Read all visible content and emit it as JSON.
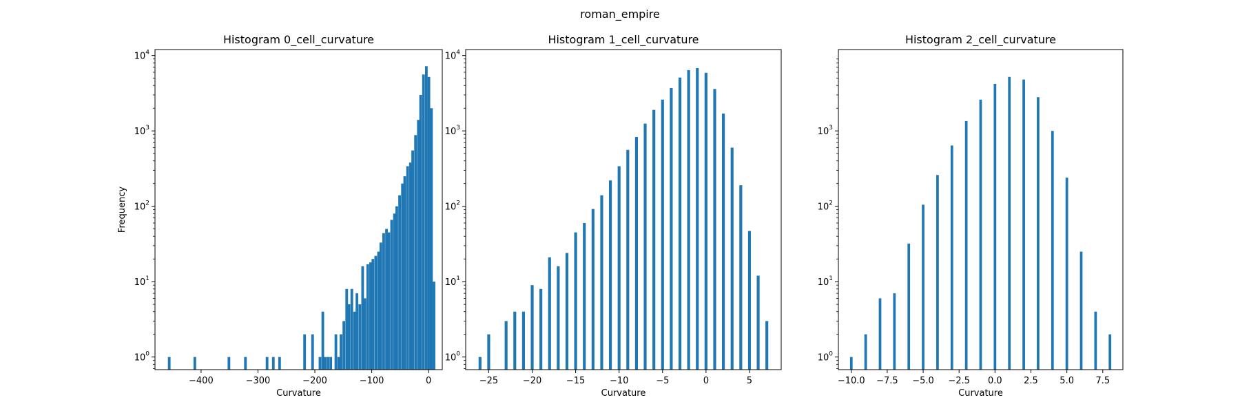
{
  "figure": {
    "suptitle": "roman_empire"
  },
  "colors": {
    "bar": "#1f77b4",
    "axes": "#000000",
    "background": "#ffffff"
  },
  "chart_data": [
    {
      "type": "bar",
      "title": "Histogram 0_cell_curvature",
      "xlabel": "Curvature",
      "ylabel": "Frequency",
      "yscale": "log",
      "xlim": [
        -481,
        24
      ],
      "ylim": [
        0.68,
        12000
      ],
      "xticks": [
        {
          "v": -400,
          "label": "−400"
        },
        {
          "v": -300,
          "label": "−300"
        },
        {
          "v": -200,
          "label": "−200"
        },
        {
          "v": -100,
          "label": "−100"
        },
        {
          "v": 0,
          "label": "0"
        }
      ],
      "yticks": [
        {
          "v": 1,
          "base": "10",
          "exp": "0"
        },
        {
          "v": 10,
          "base": "10",
          "exp": "1"
        },
        {
          "v": 100,
          "base": "10",
          "exp": "2"
        },
        {
          "v": 1000,
          "base": "10",
          "exp": "3"
        },
        {
          "v": 10000,
          "base": "10",
          "exp": "4"
        }
      ],
      "bin_width": 4.66,
      "x": [
        -456,
        -411,
        -351,
        -322,
        -284,
        -273,
        -262,
        -218,
        -204,
        -191,
        -186,
        -182,
        -177,
        -172,
        -163,
        -158,
        -154,
        -149,
        -144,
        -140,
        -135,
        -130,
        -126,
        -121,
        -116,
        -112,
        -107,
        -102,
        -98,
        -93,
        -88,
        -84,
        -79,
        -74,
        -70,
        -65,
        -60,
        -56,
        -51,
        -46,
        -42,
        -37,
        -32,
        -28,
        -23,
        -18,
        -14,
        -9,
        -4,
        0.5,
        5,
        9.5
      ],
      "values": [
        1,
        1,
        1,
        1,
        1,
        1,
        1,
        2,
        2,
        1,
        4,
        1,
        1,
        1,
        2,
        1,
        2,
        3,
        8,
        5,
        8,
        4,
        7,
        5,
        16,
        6,
        17,
        18,
        20,
        22,
        25,
        33,
        44,
        50,
        45,
        66,
        80,
        100,
        140,
        200,
        250,
        340,
        380,
        550,
        880,
        1400,
        3000,
        5600,
        7200,
        5200,
        2000,
        10
      ]
    },
    {
      "type": "bar",
      "title": "Histogram 1_cell_curvature",
      "xlabel": "Curvature",
      "yscale": "log",
      "xlim": [
        -27.65,
        8.65
      ],
      "ylim": [
        0.68,
        12000
      ],
      "xticks": [
        {
          "v": -25,
          "label": "−25"
        },
        {
          "v": -20,
          "label": "−20"
        },
        {
          "v": -15,
          "label": "−15"
        },
        {
          "v": -10,
          "label": "−10"
        },
        {
          "v": -5,
          "label": "−5"
        },
        {
          "v": 0,
          "label": "0"
        },
        {
          "v": 5,
          "label": "5"
        }
      ],
      "yticks": [
        {
          "v": 1,
          "base": "10",
          "exp": "0"
        },
        {
          "v": 10,
          "base": "10",
          "exp": "1"
        },
        {
          "v": 100,
          "base": "10",
          "exp": "2"
        },
        {
          "v": 1000,
          "base": "10",
          "exp": "3"
        },
        {
          "v": 10000,
          "base": "10",
          "exp": "4"
        }
      ],
      "bin_width": 0.33,
      "x": [
        -26,
        -25,
        -23,
        -22,
        -21,
        -20,
        -19,
        -18,
        -17,
        -16,
        -15,
        -14,
        -13,
        -12,
        -11,
        -10,
        -9,
        -8,
        -7,
        -6,
        -5,
        -4,
        -3,
        -2,
        -1,
        0,
        1,
        2,
        3,
        4,
        5,
        6,
        7
      ],
      "values": [
        1,
        2,
        3,
        4,
        4,
        9,
        8,
        21,
        16,
        24,
        45,
        60,
        92,
        140,
        220,
        340,
        560,
        830,
        1250,
        1900,
        2600,
        3700,
        5100,
        6400,
        6800,
        5900,
        3600,
        1700,
        600,
        190,
        47,
        12,
        3
      ]
    },
    {
      "type": "bar",
      "title": "Histogram 2_cell_curvature",
      "xlabel": "Curvature",
      "yscale": "log",
      "xlim": [
        -10.9,
        8.9
      ],
      "ylim": [
        0.68,
        12000
      ],
      "xticks": [
        {
          "v": -10,
          "label": "−10.0"
        },
        {
          "v": -7.5,
          "label": "−7.5"
        },
        {
          "v": -5,
          "label": "−5.0"
        },
        {
          "v": -2.5,
          "label": "−2.5"
        },
        {
          "v": 0,
          "label": "0.0"
        },
        {
          "v": 2.5,
          "label": "2.5"
        },
        {
          "v": 5,
          "label": "5.0"
        },
        {
          "v": 7.5,
          "label": "7.5"
        }
      ],
      "yticks": [
        {
          "v": 1,
          "base": "10",
          "exp": "0"
        },
        {
          "v": 10,
          "base": "10",
          "exp": "1"
        },
        {
          "v": 100,
          "base": "10",
          "exp": "2"
        },
        {
          "v": 1000,
          "base": "10",
          "exp": "3"
        }
      ],
      "bin_width": 0.18,
      "x": [
        -10,
        -9,
        -8,
        -7,
        -6,
        -5,
        -4,
        -3,
        -2,
        -1,
        0,
        1,
        2,
        3,
        4,
        5,
        6,
        7,
        8
      ],
      "values": [
        1,
        2,
        6,
        7,
        32,
        105,
        260,
        640,
        1350,
        2600,
        4200,
        5200,
        4800,
        2800,
        1000,
        240,
        25,
        4,
        2
      ]
    }
  ]
}
